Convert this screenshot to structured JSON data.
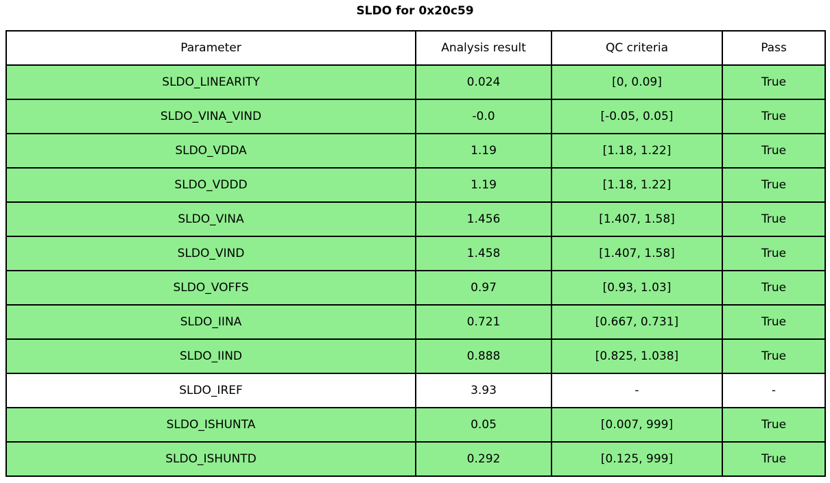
{
  "title": "SLDO for 0x20c59",
  "table": {
    "columns": [
      "Parameter",
      "Analysis result",
      "QC criteria",
      "Pass"
    ],
    "rows": [
      {
        "parameter": "SLDO_LINEARITY",
        "result": "0.024",
        "criteria": "[0, 0.09]",
        "pass": "True",
        "highlight": true
      },
      {
        "parameter": "SLDO_VINA_VIND",
        "result": "-0.0",
        "criteria": "[-0.05, 0.05]",
        "pass": "True",
        "highlight": true
      },
      {
        "parameter": "SLDO_VDDA",
        "result": "1.19",
        "criteria": "[1.18, 1.22]",
        "pass": "True",
        "highlight": true
      },
      {
        "parameter": "SLDO_VDDD",
        "result": "1.19",
        "criteria": "[1.18, 1.22]",
        "pass": "True",
        "highlight": true
      },
      {
        "parameter": "SLDO_VINA",
        "result": "1.456",
        "criteria": "[1.407, 1.58]",
        "pass": "True",
        "highlight": true
      },
      {
        "parameter": "SLDO_VIND",
        "result": "1.458",
        "criteria": "[1.407, 1.58]",
        "pass": "True",
        "highlight": true
      },
      {
        "parameter": "SLDO_VOFFS",
        "result": "0.97",
        "criteria": "[0.93, 1.03]",
        "pass": "True",
        "highlight": true
      },
      {
        "parameter": "SLDO_IINA",
        "result": "0.721",
        "criteria": "[0.667, 0.731]",
        "pass": "True",
        "highlight": true
      },
      {
        "parameter": "SLDO_IIND",
        "result": "0.888",
        "criteria": "[0.825, 1.038]",
        "pass": "True",
        "highlight": true
      },
      {
        "parameter": "SLDO_IREF",
        "result": "3.93",
        "criteria": "-",
        "pass": "-",
        "highlight": false
      },
      {
        "parameter": "SLDO_ISHUNTA",
        "result": "0.05",
        "criteria": "[0.007, 999]",
        "pass": "True",
        "highlight": true
      },
      {
        "parameter": "SLDO_ISHUNTD",
        "result": "0.292",
        "criteria": "[0.125, 999]",
        "pass": "True",
        "highlight": true
      }
    ]
  },
  "colors": {
    "pass_row_green": "#90EE90",
    "plain_row_white": "#FFFFFF",
    "border_black": "#000000",
    "text_black": "#000000"
  },
  "chart_data": {
    "type": "table",
    "title": "SLDO for 0x20c59",
    "columns": [
      "Parameter",
      "Analysis result",
      "QC criteria",
      "Pass"
    ],
    "rows": [
      [
        "SLDO_LINEARITY",
        "0.024",
        "[0, 0.09]",
        "True"
      ],
      [
        "SLDO_VINA_VIND",
        "-0.0",
        "[-0.05, 0.05]",
        "True"
      ],
      [
        "SLDO_VDDA",
        "1.19",
        "[1.18, 1.22]",
        "True"
      ],
      [
        "SLDO_VDDD",
        "1.19",
        "[1.18, 1.22]",
        "True"
      ],
      [
        "SLDO_VINA",
        "1.456",
        "[1.407, 1.58]",
        "True"
      ],
      [
        "SLDO_VIND",
        "1.458",
        "[1.407, 1.58]",
        "True"
      ],
      [
        "SLDO_VOFFS",
        "0.97",
        "[0.93, 1.03]",
        "True"
      ],
      [
        "SLDO_IINA",
        "0.721",
        "[0.667, 0.731]",
        "True"
      ],
      [
        "SLDO_IIND",
        "0.888",
        "[0.825, 1.038]",
        "True"
      ],
      [
        "SLDO_IREF",
        "3.93",
        "-",
        "-"
      ],
      [
        "SLDO_ISHUNTA",
        "0.05",
        "[0.007, 999]",
        "True"
      ],
      [
        "SLDO_ISHUNTD",
        "0.292",
        "[0.125, 999]",
        "True"
      ]
    ],
    "row_highlighted": [
      true,
      true,
      true,
      true,
      true,
      true,
      true,
      true,
      true,
      false,
      true,
      true
    ],
    "layout": {
      "header_background": "#FFFFFF",
      "pass_row_background": "#90EE90",
      "grid": true
    }
  }
}
